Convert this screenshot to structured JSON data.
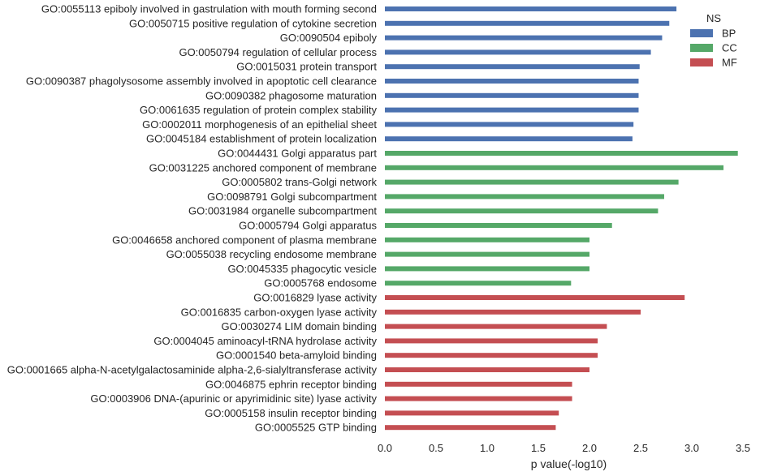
{
  "chart_data": {
    "type": "bar",
    "orientation": "horizontal",
    "xlabel": "p value(-log10)",
    "xlim": [
      0,
      3.5
    ],
    "xticks": [
      "0.0",
      "0.5",
      "1.0",
      "1.5",
      "2.0",
      "2.5",
      "3.0",
      "3.5"
    ],
    "grid": false,
    "legend": {
      "title": "NS",
      "placement": "top-right",
      "entries": [
        {
          "name": "BP",
          "color": "#4c72b0"
        },
        {
          "name": "CC",
          "color": "#55a868"
        },
        {
          "name": "MF",
          "color": "#c44e52"
        }
      ]
    },
    "categories": [
      {
        "label": "GO:0055113 epiboly involved in gastrulation with mouth forming second",
        "value": 2.85,
        "ns": "BP"
      },
      {
        "label": "GO:0050715 positive regulation of cytokine secretion",
        "value": 2.78,
        "ns": "BP"
      },
      {
        "label": "GO:0090504 epiboly",
        "value": 2.71,
        "ns": "BP"
      },
      {
        "label": "GO:0050794 regulation of cellular process",
        "value": 2.6,
        "ns": "BP"
      },
      {
        "label": "GO:0015031 protein transport",
        "value": 2.49,
        "ns": "BP"
      },
      {
        "label": "GO:0090387 phagolysosome assembly involved in apoptotic cell clearance",
        "value": 2.48,
        "ns": "BP"
      },
      {
        "label": "GO:0090382 phagosome maturation",
        "value": 2.48,
        "ns": "BP"
      },
      {
        "label": "GO:0061635 regulation of protein complex stability",
        "value": 2.48,
        "ns": "BP"
      },
      {
        "label": "GO:0002011 morphogenesis of an epithelial sheet",
        "value": 2.43,
        "ns": "BP"
      },
      {
        "label": "GO:0045184 establishment of protein localization",
        "value": 2.42,
        "ns": "BP"
      },
      {
        "label": "GO:0044431 Golgi apparatus part",
        "value": 3.45,
        "ns": "CC"
      },
      {
        "label": "GO:0031225 anchored component of membrane",
        "value": 3.31,
        "ns": "CC"
      },
      {
        "label": "GO:0005802 trans-Golgi network",
        "value": 2.87,
        "ns": "CC"
      },
      {
        "label": "GO:0098791 Golgi subcompartment",
        "value": 2.73,
        "ns": "CC"
      },
      {
        "label": "GO:0031984 organelle subcompartment",
        "value": 2.67,
        "ns": "CC"
      },
      {
        "label": "GO:0005794 Golgi apparatus",
        "value": 2.22,
        "ns": "CC"
      },
      {
        "label": "GO:0046658 anchored component of plasma membrane",
        "value": 2.0,
        "ns": "CC"
      },
      {
        "label": "GO:0055038 recycling endosome membrane",
        "value": 2.0,
        "ns": "CC"
      },
      {
        "label": "GO:0045335 phagocytic vesicle",
        "value": 2.0,
        "ns": "CC"
      },
      {
        "label": "GO:0005768 endosome",
        "value": 1.82,
        "ns": "CC"
      },
      {
        "label": "GO:0016829 lyase activity",
        "value": 2.93,
        "ns": "MF"
      },
      {
        "label": "GO:0016835 carbon-oxygen lyase activity",
        "value": 2.5,
        "ns": "MF"
      },
      {
        "label": "GO:0030274 LIM domain binding",
        "value": 2.17,
        "ns": "MF"
      },
      {
        "label": "GO:0004045 aminoacyl-tRNA hydrolase activity",
        "value": 2.08,
        "ns": "MF"
      },
      {
        "label": "GO:0001540 beta-amyloid binding",
        "value": 2.08,
        "ns": "MF"
      },
      {
        "label": "GO:0001665 alpha-N-acetylgalactosaminide alpha-2,6-sialyltransferase activity",
        "value": 2.0,
        "ns": "MF"
      },
      {
        "label": "GO:0046875 ephrin receptor binding",
        "value": 1.83,
        "ns": "MF"
      },
      {
        "label": "GO:0003906 DNA-(apurinic or apyrimidinic site) lyase activity",
        "value": 1.83,
        "ns": "MF"
      },
      {
        "label": "GO:0005158 insulin receptor binding",
        "value": 1.7,
        "ns": "MF"
      },
      {
        "label": "GO:0005525 GTP binding",
        "value": 1.67,
        "ns": "MF"
      }
    ]
  }
}
